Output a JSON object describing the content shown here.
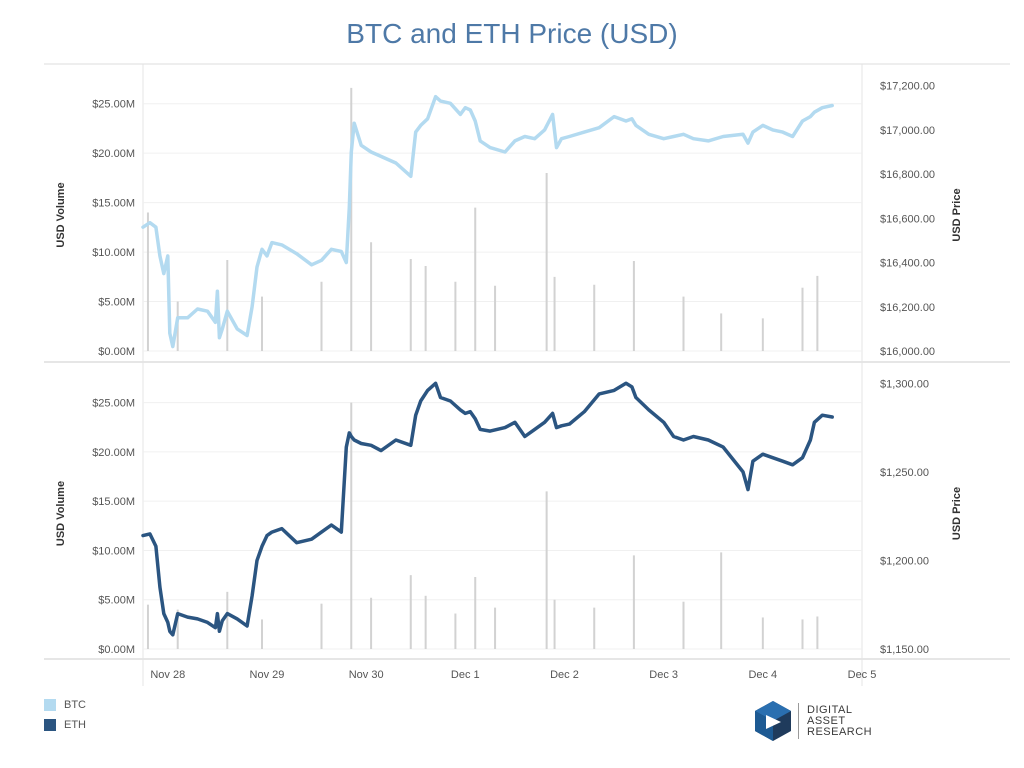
{
  "title": "BTC and ETH Price (USD)",
  "colors": {
    "btc": "#b3daf0",
    "eth": "#2b5581",
    "volume": "#d2d2d2",
    "title": "#4e79a7",
    "axis_text": "#555555"
  },
  "x_axis": {
    "tick_labels": [
      "Nov 28",
      "Nov 29",
      "Nov 30",
      "Dec 1",
      "Dec 2",
      "Dec 3",
      "Dec 4",
      "Dec 5"
    ]
  },
  "legend": [
    {
      "label": "BTC",
      "color": "#b3daf0"
    },
    {
      "label": "ETH",
      "color": "#2b5581"
    }
  ],
  "logo": {
    "lines": [
      "DIGITAL",
      "ASSET",
      "RESEARCH"
    ]
  },
  "chart_data": [
    {
      "type": "line",
      "panel": "top",
      "y_left_label": "USD Volume",
      "y_right_label": "USD Price",
      "y_left_ticks": [
        "$0.00M",
        "$5.00M",
        "$10.00M",
        "$15.00M",
        "$20.00M",
        "$25.00M"
      ],
      "y_right_ticks": [
        "$16,000.00",
        "$16,200.00",
        "$16,400.00",
        "$16,600.00",
        "$16,800.00",
        "$17,000.00",
        "$17,200.00"
      ],
      "y_left_range": [
        0,
        27500000
      ],
      "y_right_range": [
        16000,
        17230
      ],
      "x_range": [
        -0.25,
        7.0
      ],
      "series": [
        {
          "name": "BTC",
          "kind": "price",
          "x": [
            -0.25,
            -0.18,
            -0.12,
            -0.08,
            -0.04,
            0.0,
            0.02,
            0.05,
            0.1,
            0.2,
            0.3,
            0.4,
            0.48,
            0.5,
            0.52,
            0.55,
            0.6,
            0.7,
            0.8,
            0.85,
            0.9,
            0.95,
            1.0,
            1.05,
            1.15,
            1.3,
            1.45,
            1.55,
            1.65,
            1.75,
            1.8,
            1.83,
            1.85,
            1.88,
            1.95,
            2.05,
            2.15,
            2.3,
            2.45,
            2.5,
            2.55,
            2.62,
            2.7,
            2.75,
            2.85,
            2.95,
            3.0,
            3.05,
            3.1,
            3.15,
            3.25,
            3.4,
            3.5,
            3.6,
            3.7,
            3.8,
            3.88,
            3.92,
            3.97,
            4.05,
            4.2,
            4.35,
            4.5,
            4.62,
            4.68,
            4.72,
            4.85,
            5.0,
            5.1,
            5.2,
            5.3,
            5.45,
            5.6,
            5.8,
            5.85,
            5.9,
            6.0,
            6.1,
            6.2,
            6.3,
            6.4,
            6.48,
            6.52,
            6.6,
            6.7
          ],
          "y": [
            16560,
            16580,
            16560,
            16430,
            16350,
            16430,
            16080,
            16020,
            16150,
            16150,
            16190,
            16180,
            16130,
            16270,
            16060,
            16100,
            16180,
            16100,
            16070,
            16200,
            16380,
            16460,
            16430,
            16490,
            16480,
            16440,
            16390,
            16410,
            16460,
            16450,
            16400,
            16650,
            16900,
            17030,
            16930,
            16900,
            16880,
            16850,
            16790,
            16990,
            17020,
            17050,
            17150,
            17130,
            17120,
            17070,
            17100,
            17090,
            17040,
            16950,
            16920,
            16900,
            16950,
            16970,
            16960,
            17000,
            17070,
            16920,
            16960,
            16970,
            16990,
            17010,
            17060,
            17040,
            17050,
            17020,
            16980,
            16960,
            16970,
            16980,
            16960,
            16950,
            16970,
            16980,
            16940,
            16990,
            17020,
            17000,
            16990,
            16970,
            17040,
            17060,
            17080,
            17100,
            17110
          ]
        },
        {
          "name": "BTC volume",
          "kind": "volume",
          "x": [
            -0.2,
            0.1,
            0.6,
            0.95,
            1.55,
            1.85,
            2.05,
            2.45,
            2.6,
            2.9,
            3.1,
            3.3,
            3.82,
            3.9,
            4.3,
            4.7,
            5.2,
            5.58,
            6.0,
            6.4,
            6.55
          ],
          "y": [
            14000000,
            5000000,
            9200000,
            5500000,
            7000000,
            26600000,
            11000000,
            9300000,
            8600000,
            7000000,
            14500000,
            6600000,
            18000000,
            7500000,
            6700000,
            9100000,
            5500000,
            3800000,
            3300000,
            6400000,
            7600000
          ]
        }
      ]
    },
    {
      "type": "line",
      "panel": "bottom",
      "y_left_label": "USD Volume",
      "y_right_label": "USD Price",
      "y_left_ticks": [
        "$0.00M",
        "$5.00M",
        "$10.00M",
        "$15.00M",
        "$20.00M",
        "$25.00M"
      ],
      "y_right_ticks": [
        "$1,150.00",
        "$1,200.00",
        "$1,250.00",
        "$1,300.00"
      ],
      "y_left_range": [
        0,
        27500000
      ],
      "y_right_range": [
        1150,
        1303
      ],
      "x_range": [
        -0.25,
        7.0
      ],
      "series": [
        {
          "name": "ETH",
          "kind": "price",
          "x": [
            -0.25,
            -0.18,
            -0.12,
            -0.08,
            -0.04,
            0.0,
            0.02,
            0.05,
            0.1,
            0.2,
            0.3,
            0.4,
            0.48,
            0.5,
            0.52,
            0.55,
            0.6,
            0.7,
            0.8,
            0.85,
            0.9,
            0.95,
            1.0,
            1.05,
            1.15,
            1.3,
            1.45,
            1.55,
            1.65,
            1.75,
            1.8,
            1.83,
            1.85,
            1.88,
            1.95,
            2.05,
            2.15,
            2.3,
            2.45,
            2.5,
            2.55,
            2.62,
            2.7,
            2.75,
            2.85,
            2.95,
            3.0,
            3.05,
            3.1,
            3.15,
            3.25,
            3.4,
            3.5,
            3.6,
            3.7,
            3.8,
            3.88,
            3.92,
            3.97,
            4.05,
            4.2,
            4.35,
            4.5,
            4.62,
            4.68,
            4.72,
            4.85,
            5.0,
            5.1,
            5.2,
            5.3,
            5.45,
            5.6,
            5.8,
            5.85,
            5.9,
            6.0,
            6.1,
            6.2,
            6.3,
            6.4,
            6.48,
            6.52,
            6.6,
            6.7
          ],
          "y": [
            1214,
            1215,
            1208,
            1185,
            1170,
            1165,
            1160,
            1158,
            1170,
            1168,
            1167,
            1165,
            1162,
            1170,
            1160,
            1166,
            1170,
            1167,
            1163,
            1180,
            1200,
            1208,
            1214,
            1216,
            1218,
            1210,
            1212,
            1216,
            1220,
            1216,
            1264,
            1272,
            1270,
            1268,
            1266,
            1265,
            1262,
            1268,
            1265,
            1282,
            1290,
            1296,
            1300,
            1292,
            1290,
            1285,
            1283,
            1284,
            1280,
            1274,
            1273,
            1275,
            1278,
            1270,
            1274,
            1278,
            1283,
            1275,
            1276,
            1277,
            1284,
            1294,
            1296,
            1300,
            1298,
            1292,
            1285,
            1278,
            1270,
            1268,
            1270,
            1268,
            1264,
            1250,
            1240,
            1256,
            1260,
            1258,
            1256,
            1254,
            1258,
            1268,
            1278,
            1282,
            1281
          ]
        },
        {
          "name": "ETH volume",
          "kind": "volume",
          "x": [
            -0.2,
            0.1,
            0.6,
            0.95,
            1.55,
            1.85,
            2.05,
            2.45,
            2.6,
            2.9,
            3.1,
            3.3,
            3.82,
            3.9,
            4.3,
            4.7,
            5.2,
            5.58,
            6.0,
            6.4,
            6.55
          ],
          "y": [
            4500000,
            4000000,
            5800000,
            3000000,
            4600000,
            25000000,
            5200000,
            7500000,
            5400000,
            3600000,
            7300000,
            4200000,
            16000000,
            5000000,
            4200000,
            9500000,
            4800000,
            9800000,
            3200000,
            3000000,
            3300000
          ]
        }
      ]
    }
  ]
}
